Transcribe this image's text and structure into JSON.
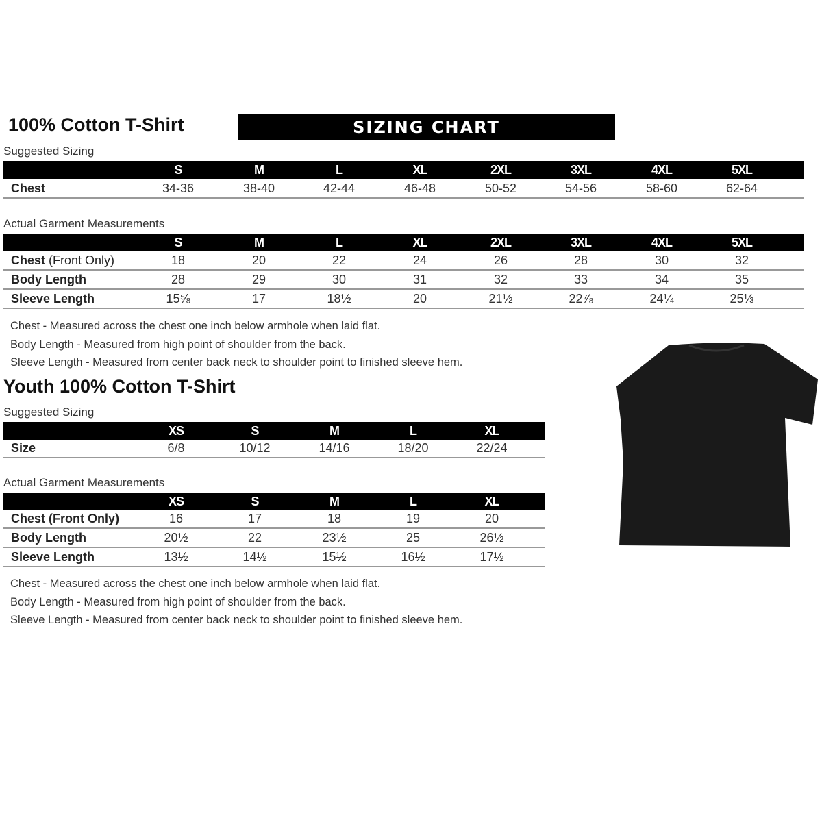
{
  "adult": {
    "title": "100% Cotton T-Shirt",
    "banner": "SIZING CHART",
    "suggested_label": "Suggested Sizing",
    "sizes": [
      "S",
      "M",
      "L",
      "XL",
      "2XL",
      "3XL",
      "4XL",
      "5XL"
    ],
    "suggested_rows": [
      {
        "label": "Chest",
        "values": [
          "34-36",
          "38-40",
          "42-44",
          "46-48",
          "50-52",
          "54-56",
          "58-60",
          "62-64"
        ]
      }
    ],
    "actual_label": "Actual Garment Measurements",
    "actual_rows": [
      {
        "label": "Chest",
        "label_extra": " (Front Only)",
        "values": [
          "18",
          "20",
          "22",
          "24",
          "26",
          "28",
          "30",
          "32"
        ]
      },
      {
        "label": "Body Length",
        "values": [
          "28",
          "29",
          "30",
          "31",
          "32",
          "33",
          "34",
          "35"
        ]
      },
      {
        "label": "Sleeve Length",
        "values": [
          "15⅝",
          "17",
          "18½",
          "20",
          "21½",
          "22⅞",
          "24¼",
          "25⅓"
        ]
      }
    ],
    "notes": [
      "Chest - Measured across the chest one inch below armhole when laid flat.",
      "Body Length - Measured from high point of shoulder from the back.",
      "Sleeve Length - Measured from center back neck to shoulder point to finished sleeve hem."
    ]
  },
  "youth": {
    "title": "Youth 100% Cotton T-Shirt",
    "suggested_label": "Suggested Sizing",
    "sizes": [
      "XS",
      "S",
      "M",
      "L",
      "XL"
    ],
    "suggested_rows": [
      {
        "label": "Size",
        "values": [
          "6/8",
          "10/12",
          "14/16",
          "18/20",
          "22/24"
        ]
      }
    ],
    "actual_label": "Actual Garment Measurements",
    "actual_rows": [
      {
        "label": "Chest (Front Only)",
        "values": [
          "16",
          "17",
          "18",
          "19",
          "20"
        ]
      },
      {
        "label": "Body Length",
        "values": [
          "20½",
          "22",
          "23½",
          "25",
          "26½"
        ]
      },
      {
        "label": "Sleeve Length",
        "values": [
          "13½",
          "14½",
          "15½",
          "16½",
          "17½"
        ]
      }
    ],
    "notes": [
      "Chest - Measured across the chest one inch below armhole when laid flat.",
      "Body Length - Measured from high point of shoulder from the back.",
      "Sleeve Length - Measured from center back neck to shoulder point to finished sleeve hem."
    ]
  },
  "image": {
    "icon": "black-tshirt-icon",
    "color": "#1a1a1a"
  }
}
